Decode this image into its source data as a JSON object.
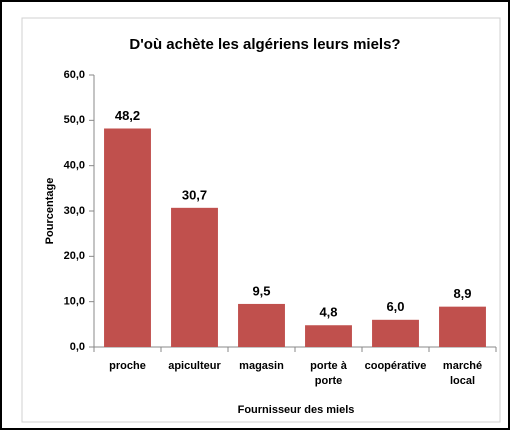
{
  "chart_data": {
    "type": "bar",
    "title": "D'où achète les algériens leurs miels?",
    "x_label": "Fournisseur des miels",
    "y_label": "Pourcentage",
    "categories": [
      "proche",
      "apiculteur",
      "magasin",
      "porte à porte",
      "coopérative",
      "marché local"
    ],
    "values": [
      48.2,
      30.7,
      9.5,
      4.8,
      6.0,
      8.9
    ],
    "value_labels": [
      "48,2",
      "30,7",
      "9,5",
      "4,8",
      "6,0",
      "8,9"
    ],
    "color": "#c0504d",
    "ylim": [
      0,
      60
    ],
    "yticks": [
      {
        "value": 0,
        "label": "0,0"
      },
      {
        "value": 10,
        "label": "10,0"
      },
      {
        "value": 20,
        "label": "20,0"
      },
      {
        "value": 30,
        "label": "30,0"
      },
      {
        "value": 40,
        "label": "40,0"
      },
      {
        "value": 50,
        "label": "50,0"
      },
      {
        "value": 60,
        "label": "60,0"
      }
    ],
    "grid": false
  }
}
